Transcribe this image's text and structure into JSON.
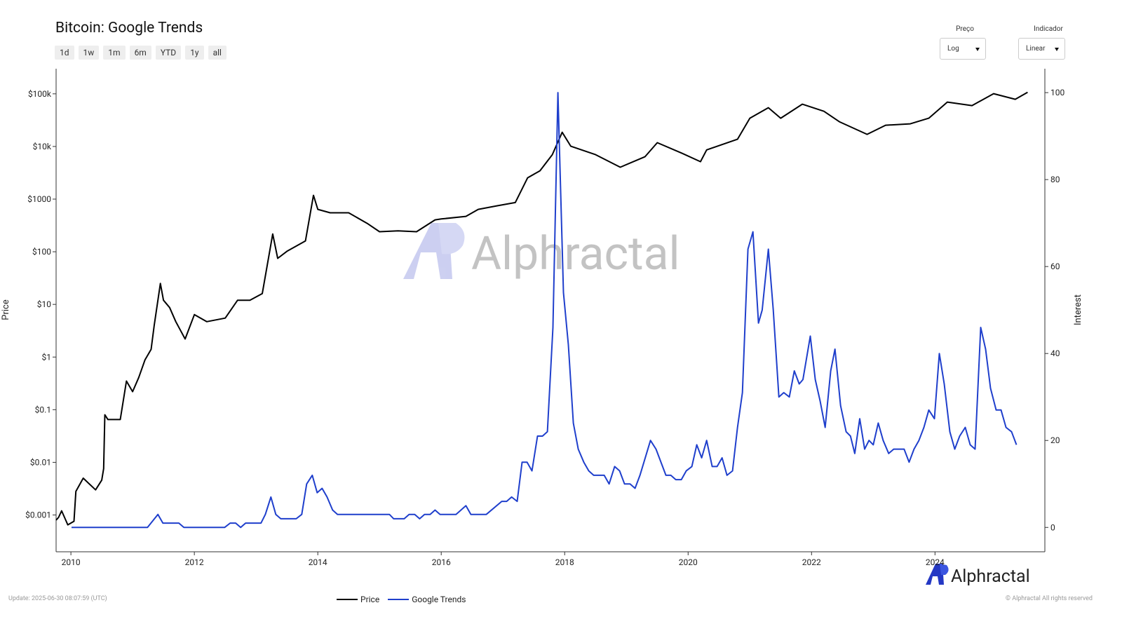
{
  "chart_data": {
    "type": "line",
    "title": "Bitcoin: Google Trends",
    "xlim": [
      2009.76,
      2025.78
    ],
    "xticks": [
      2010,
      2012,
      2014,
      2016,
      2018,
      2020,
      2022,
      2024
    ],
    "ylabel": "Price",
    "yscale": "log",
    "ylim": [
      0.0002,
      300000
    ],
    "yticks": [
      {
        "value": 0.001,
        "label": "$0.001"
      },
      {
        "value": 0.01,
        "label": "$0.01"
      },
      {
        "value": 0.1,
        "label": "$0.1"
      },
      {
        "value": 1,
        "label": "$1"
      },
      {
        "value": 10,
        "label": "$10"
      },
      {
        "value": 100,
        "label": "$100"
      },
      {
        "value": 1000,
        "label": "$1000"
      },
      {
        "value": 10000,
        "label": "$10k"
      },
      {
        "value": 100000,
        "label": "$100k"
      }
    ],
    "y2label": "Interest",
    "y2lim": [
      -5.6,
      105.5
    ],
    "y2ticks": [
      0,
      20,
      40,
      60,
      80,
      100
    ],
    "grid": false,
    "series": [
      {
        "name": "Price",
        "color": "#000000",
        "x": [
          2009.76,
          2009.8,
          2009.85,
          2009.95,
          2010.05,
          2010.08,
          2010.2,
          2010.4,
          2010.5,
          2010.53,
          2010.55,
          2010.6,
          2010.8,
          2010.9,
          2011.0,
          2011.1,
          2011.2,
          2011.3,
          2011.35,
          2011.45,
          2011.5,
          2011.6,
          2011.7,
          2011.85,
          2012.0,
          2012.2,
          2012.5,
          2012.7,
          2012.9,
          2013.1,
          2013.27,
          2013.35,
          2013.5,
          2013.8,
          2013.93,
          2014.0,
          2014.2,
          2014.5,
          2014.8,
          2015.0,
          2015.3,
          2015.6,
          2015.9,
          2016.0,
          2016.4,
          2016.6,
          2016.9,
          2017.2,
          2017.4,
          2017.6,
          2017.8,
          2017.96,
          2018.1,
          2018.5,
          2018.9,
          2019.3,
          2019.5,
          2019.9,
          2020.2,
          2020.3,
          2020.8,
          2021.0,
          2021.3,
          2021.5,
          2021.85,
          2022.2,
          2022.45,
          2022.9,
          2023.2,
          2023.6,
          2023.9,
          2024.2,
          2024.6,
          2024.95,
          2025.3,
          2025.5
        ],
        "values": [
          0.0008,
          0.0009,
          0.0012,
          0.00065,
          0.00076,
          0.0028,
          0.005,
          0.003,
          0.0046,
          0.0076,
          0.08,
          0.065,
          0.065,
          0.35,
          0.22,
          0.41,
          0.88,
          1.4,
          4,
          25,
          12,
          8.7,
          4.7,
          2.2,
          6.4,
          4.7,
          5.5,
          12,
          12,
          16,
          218,
          75,
          102,
          161,
          1180,
          640,
          550,
          550,
          346,
          240,
          250,
          240,
          404,
          420,
          470,
          640,
          745,
          860,
          2540,
          3450,
          6980,
          18600,
          10100,
          6980,
          4030,
          6370,
          11800,
          7430,
          5140,
          8600,
          13700,
          34400,
          54500,
          34400,
          63500,
          46700,
          29500,
          17000,
          25300,
          26900,
          34400,
          69700,
          59700,
          100700,
          78800,
          107000
        ]
      },
      {
        "name": "Google Trends",
        "color": "#1f3fcc",
        "axis": "y2",
        "x": [
          2010.01,
          2011.24,
          2011.41,
          2011.49,
          2011.75,
          2011.83,
          2012.49,
          2012.58,
          2012.67,
          2012.75,
          2012.83,
          2013.08,
          2013.15,
          2013.24,
          2013.32,
          2013.4,
          2013.65,
          2013.74,
          2013.82,
          2013.91,
          2013.99,
          2014.07,
          2014.15,
          2014.24,
          2014.32,
          2015.16,
          2015.23,
          2015.4,
          2015.48,
          2015.57,
          2015.65,
          2015.73,
          2015.82,
          2015.9,
          2015.98,
          2016.24,
          2016.4,
          2016.48,
          2016.73,
          2016.98,
          2017.06,
          2017.14,
          2017.23,
          2017.31,
          2017.39,
          2017.47,
          2017.56,
          2017.64,
          2017.72,
          2017.81,
          2017.89,
          2017.98,
          2018.06,
          2018.14,
          2018.22,
          2018.31,
          2018.39,
          2018.47,
          2018.64,
          2018.72,
          2018.81,
          2018.89,
          2018.97,
          2019.06,
          2019.14,
          2019.22,
          2019.39,
          2019.48,
          2019.64,
          2019.72,
          2019.8,
          2019.89,
          2019.97,
          2020.06,
          2020.14,
          2020.22,
          2020.3,
          2020.39,
          2020.47,
          2020.55,
          2020.63,
          2020.72,
          2020.8,
          2020.88,
          2020.97,
          2021.05,
          2021.14,
          2021.2,
          2021.3,
          2021.38,
          2021.47,
          2021.55,
          2021.64,
          2021.72,
          2021.8,
          2021.86,
          2021.98,
          2022.06,
          2022.14,
          2022.22,
          2022.31,
          2022.38,
          2022.47,
          2022.56,
          2022.63,
          2022.7,
          2022.78,
          2022.86,
          2022.93,
          2023.0,
          2023.08,
          2023.16,
          2023.25,
          2023.33,
          2023.5,
          2023.58,
          2023.66,
          2023.74,
          2023.82,
          2023.9,
          2023.99,
          2024.07,
          2024.15,
          2024.24,
          2024.32,
          2024.4,
          2024.49,
          2024.57,
          2024.65,
          2024.74,
          2024.82,
          2024.9,
          2024.99,
          2025.07,
          2025.15,
          2025.24,
          2025.32
        ],
        "values": [
          0,
          0,
          3,
          1,
          1,
          0,
          0,
          1,
          1,
          0,
          1,
          1,
          3,
          7,
          3,
          2,
          2,
          3,
          10,
          12,
          8,
          9,
          7,
          4,
          3,
          3,
          2,
          2,
          3,
          3,
          2,
          3,
          3,
          4,
          3,
          3,
          5,
          3,
          3,
          6,
          6,
          7,
          6,
          15,
          15,
          13,
          21,
          21,
          22,
          46,
          100,
          54,
          42,
          24,
          18,
          15,
          13,
          12,
          12,
          10,
          14,
          13,
          10,
          10,
          9,
          12,
          20,
          18,
          12,
          12,
          11,
          11,
          13,
          14,
          19,
          16,
          20,
          14,
          14,
          16,
          12,
          13,
          23,
          31,
          64,
          68,
          47,
          50,
          64,
          50,
          30,
          31,
          30,
          36,
          33,
          34,
          44,
          34,
          29,
          23,
          36,
          41,
          28,
          22,
          21,
          17,
          25,
          18,
          20,
          19,
          24,
          20,
          17,
          18,
          18,
          15,
          18,
          20,
          23,
          27,
          25,
          40,
          33,
          22,
          18,
          21,
          23,
          19,
          18,
          46,
          41,
          32,
          27,
          27,
          23,
          22,
          19
        ]
      }
    ]
  },
  "controls": {
    "ranges": [
      "1d",
      "1w",
      "1m",
      "6m",
      "YTD",
      "1y",
      "all"
    ],
    "price_scale": {
      "label": "Preço",
      "value": "Log"
    },
    "indicator_scale": {
      "label": "Indicador",
      "value": "Linear"
    }
  },
  "branding": {
    "name": "Alphractal"
  },
  "footer": {
    "update": "Update: 2025-06-30 08:07:59 (UTC)",
    "copyright": "© Alphractal All rights reserved"
  }
}
